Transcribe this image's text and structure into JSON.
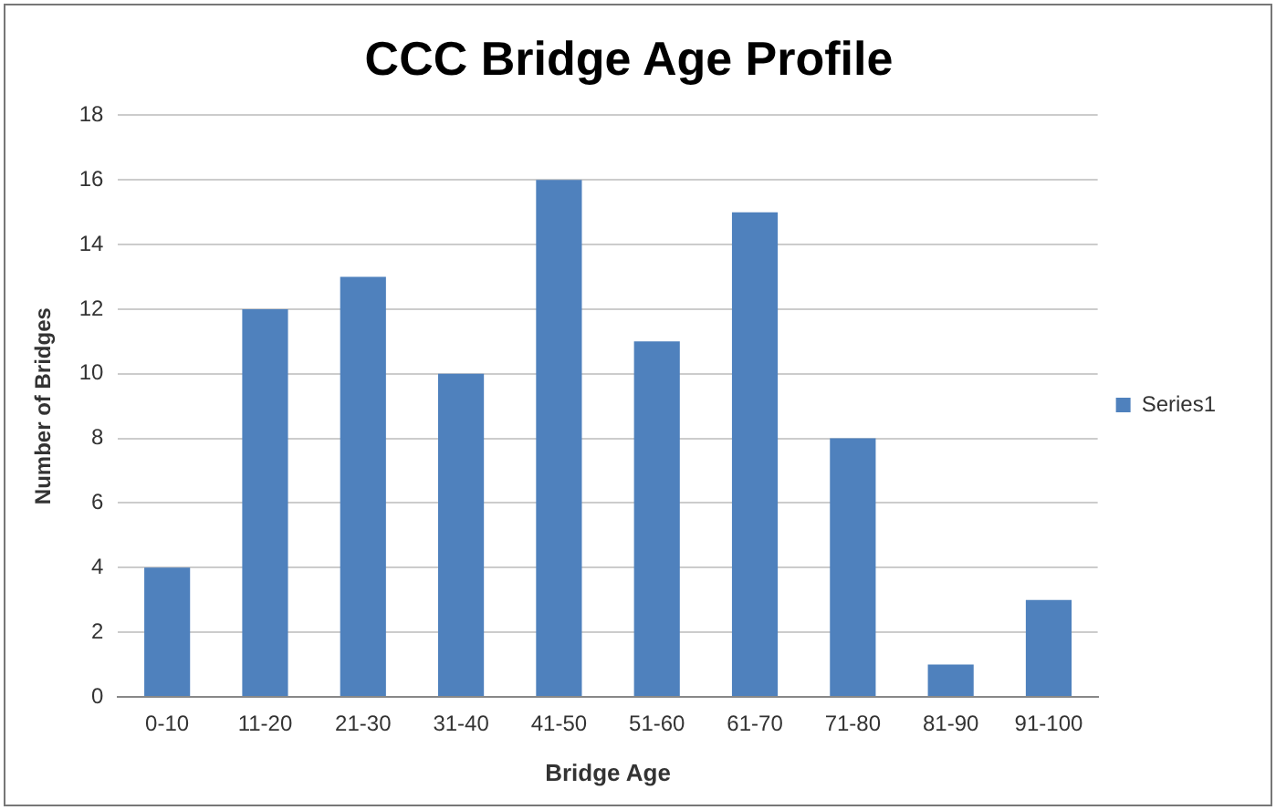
{
  "chart_data": {
    "type": "bar",
    "title": "CCC Bridge Age Profile",
    "xlabel": "Bridge Age",
    "ylabel": "Number of Bridges",
    "categories": [
      "0-10",
      "11-20",
      "21-30",
      "31-40",
      "41-50",
      "51-60",
      "61-70",
      "71-80",
      "81-90",
      "91-100"
    ],
    "series": [
      {
        "name": "Series1",
        "color": "#4f81bd",
        "values": [
          4,
          12,
          13,
          10,
          16,
          11,
          15,
          8,
          1,
          3
        ]
      }
    ],
    "ylim": [
      0,
      18
    ],
    "yticks": [
      0,
      2,
      4,
      6,
      8,
      10,
      12,
      14,
      16,
      18
    ],
    "grid": "y",
    "legend": "right"
  }
}
